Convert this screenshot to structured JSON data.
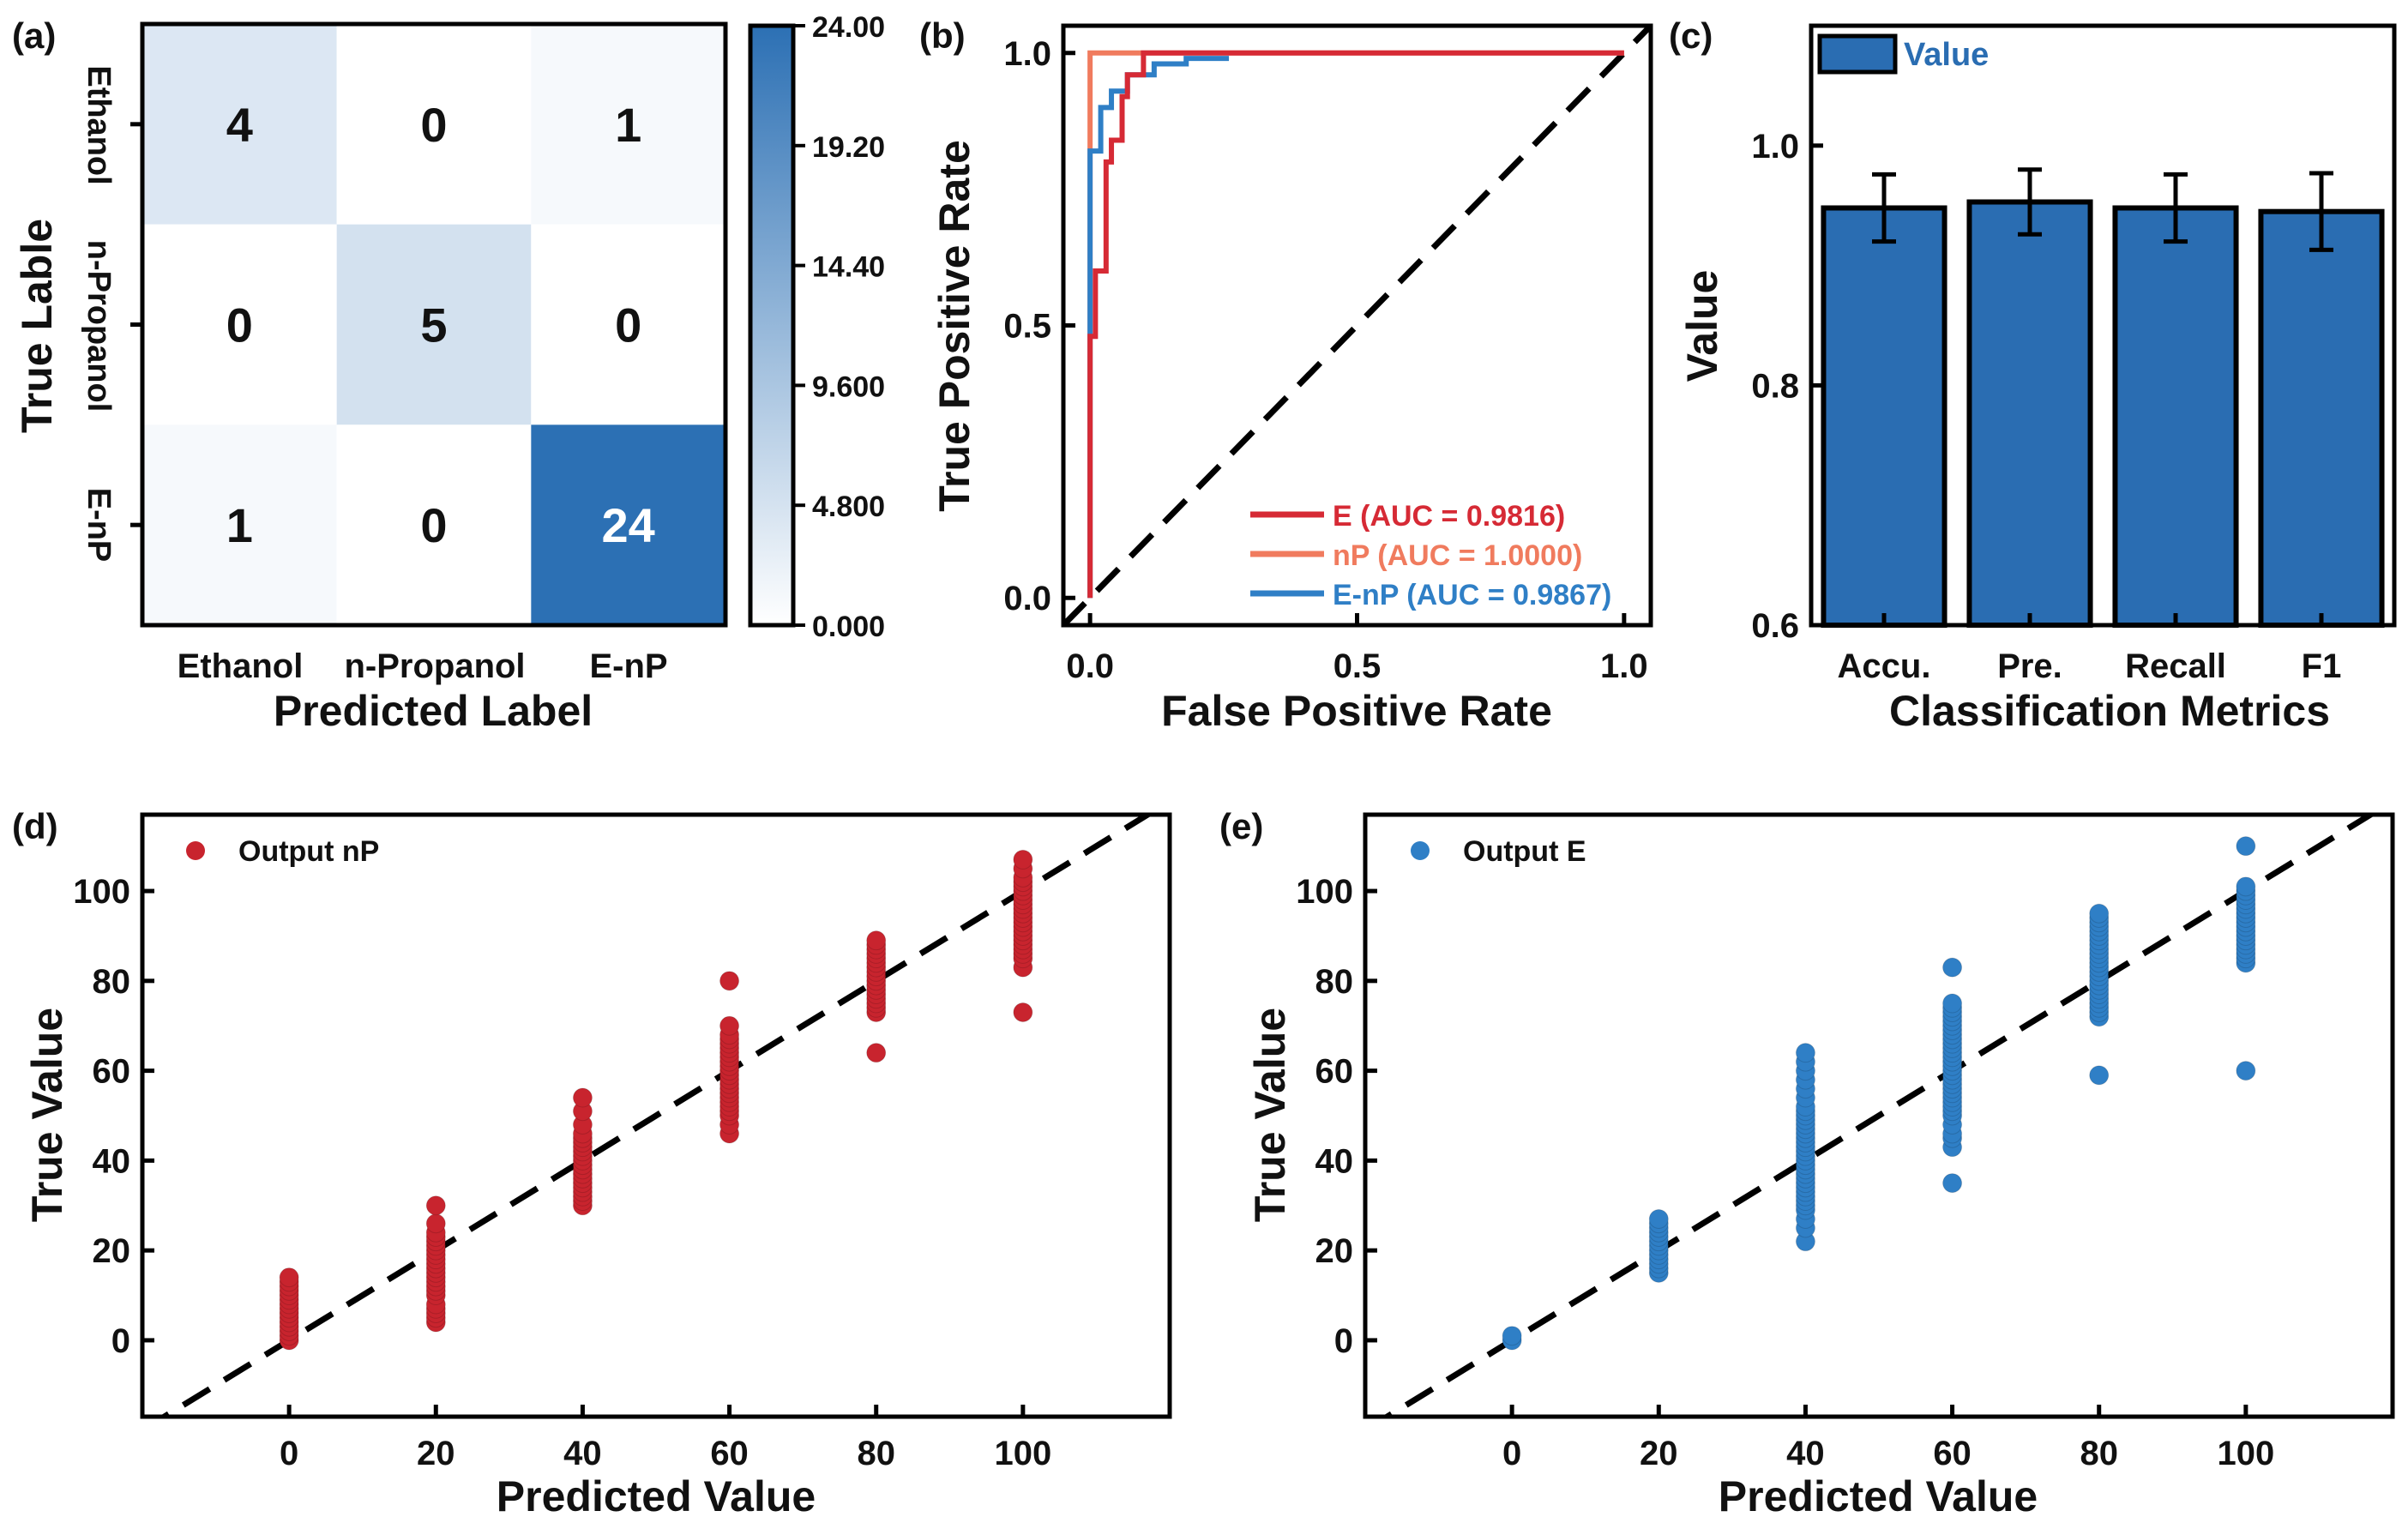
{
  "chart_data": [
    {
      "panel": "(a)",
      "type": "heatmap",
      "title": "",
      "xlabel": "Predicted Label",
      "ylabel": "True Lable",
      "x_categories": [
        "Ethanol",
        "n-Propanol",
        "E-nP"
      ],
      "y_categories": [
        "Ethanol",
        "n-Propanol",
        "E-nP"
      ],
      "matrix": [
        [
          4,
          0,
          1
        ],
        [
          0,
          5,
          0
        ],
        [
          1,
          0,
          24
        ]
      ],
      "colorbar": {
        "min": 0,
        "max": 24,
        "ticks": [
          "24.00",
          "19.20",
          "14.40",
          "9.600",
          "4.800",
          "0.000"
        ],
        "low_color": "#ffffff",
        "high_color": "#2c70b4"
      }
    },
    {
      "panel": "(b)",
      "type": "line",
      "xlabel": "False Positive Rate",
      "ylabel": "True Positive Rate",
      "xlim": [
        -0.05,
        1.05
      ],
      "ylim": [
        -0.05,
        1.05
      ],
      "xticks": [
        0.0,
        0.5,
        1.0
      ],
      "xtick_labels": [
        "0.0",
        "0.5",
        "1.0"
      ],
      "yticks": [
        0.0,
        0.5,
        1.0
      ],
      "ytick_labels": [
        "0.0",
        "0.5",
        "1.0"
      ],
      "legend_position": "bottom-right",
      "diagonal": true,
      "series": [
        {
          "name": "E (AUC = 0.9816)",
          "color": "#d62a35",
          "points": [
            [
              0,
              0
            ],
            [
              0,
              0.48
            ],
            [
              0.01,
              0.48
            ],
            [
              0.01,
              0.6
            ],
            [
              0.03,
              0.6
            ],
            [
              0.03,
              0.8
            ],
            [
              0.04,
              0.8
            ],
            [
              0.04,
              0.84
            ],
            [
              0.06,
              0.84
            ],
            [
              0.06,
              0.92
            ],
            [
              0.07,
              0.92
            ],
            [
              0.07,
              0.96
            ],
            [
              0.1,
              0.96
            ],
            [
              0.1,
              1
            ],
            [
              1,
              1
            ]
          ]
        },
        {
          "name": "nP (AUC = 1.0000)",
          "color": "#f07b5e",
          "points": [
            [
              0,
              0
            ],
            [
              0,
              1
            ],
            [
              1,
              1
            ]
          ]
        },
        {
          "name": "E-nP (AUC = 0.9867)",
          "color": "#2f7fc6",
          "points": [
            [
              0,
              0
            ],
            [
              0,
              0.82
            ],
            [
              0.02,
              0.82
            ],
            [
              0.02,
              0.9
            ],
            [
              0.04,
              0.9
            ],
            [
              0.04,
              0.93
            ],
            [
              0.07,
              0.93
            ],
            [
              0.07,
              0.96
            ],
            [
              0.12,
              0.96
            ],
            [
              0.12,
              0.98
            ],
            [
              0.18,
              0.98
            ],
            [
              0.18,
              0.99
            ],
            [
              0.26,
              0.99
            ]
          ]
        }
      ]
    },
    {
      "panel": "(c)",
      "type": "bar",
      "xlabel": "Classification Metrics",
      "ylabel": "Value",
      "categories": [
        "Accu.",
        "Pre.",
        "Recall",
        "F1"
      ],
      "values": [
        0.948,
        0.953,
        0.948,
        0.945
      ],
      "errors": [
        0.028,
        0.027,
        0.028,
        0.032
      ],
      "ylim": [
        0.6,
        1.1
      ],
      "yticks": [
        0.6,
        0.8,
        1.0
      ],
      "ytick_labels": [
        "0.6",
        "0.8",
        "1.0"
      ],
      "legend": "Value",
      "legend_position": "top-left",
      "color": "#2a6db2"
    },
    {
      "panel": "(d)",
      "type": "scatter",
      "xlabel": "Predicted Value",
      "ylabel": "True Value",
      "legend": "Output nP",
      "legend_position": "top-left",
      "color": "#c8242e",
      "xlim": [
        -20,
        120
      ],
      "ylim": [
        -17,
        117
      ],
      "xticks": [
        0,
        20,
        40,
        60,
        80,
        100
      ],
      "xtick_labels": [
        "0",
        "20",
        "40",
        "60",
        "80",
        "100"
      ],
      "yticks": [
        0,
        20,
        40,
        60,
        80,
        100
      ],
      "ytick_labels": [
        "0",
        "20",
        "40",
        "60",
        "80",
        "100"
      ],
      "diagonal": true,
      "points": [
        [
          0,
          0
        ],
        [
          0,
          1
        ],
        [
          0,
          2
        ],
        [
          0,
          3
        ],
        [
          0,
          4
        ],
        [
          0,
          5
        ],
        [
          0,
          6
        ],
        [
          0,
          7
        ],
        [
          0,
          8
        ],
        [
          0,
          9
        ],
        [
          0,
          10
        ],
        [
          0,
          11
        ],
        [
          0,
          12
        ],
        [
          0,
          13
        ],
        [
          0,
          14
        ],
        [
          20,
          4
        ],
        [
          20,
          5
        ],
        [
          20,
          6
        ],
        [
          20,
          7
        ],
        [
          20,
          8
        ],
        [
          20,
          10
        ],
        [
          20,
          11
        ],
        [
          20,
          12
        ],
        [
          20,
          13
        ],
        [
          20,
          14
        ],
        [
          20,
          15
        ],
        [
          20,
          16
        ],
        [
          20,
          17
        ],
        [
          20,
          18
        ],
        [
          20,
          19
        ],
        [
          20,
          20
        ],
        [
          20,
          21
        ],
        [
          20,
          22
        ],
        [
          20,
          23
        ],
        [
          20,
          24
        ],
        [
          20,
          26
        ],
        [
          20,
          30
        ],
        [
          40,
          30
        ],
        [
          40,
          31
        ],
        [
          40,
          32
        ],
        [
          40,
          33
        ],
        [
          40,
          34
        ],
        [
          40,
          35
        ],
        [
          40,
          36
        ],
        [
          40,
          37
        ],
        [
          40,
          38
        ],
        [
          40,
          39
        ],
        [
          40,
          40
        ],
        [
          40,
          41
        ],
        [
          40,
          42
        ],
        [
          40,
          43
        ],
        [
          40,
          44
        ],
        [
          40,
          45
        ],
        [
          40,
          46
        ],
        [
          40,
          48
        ],
        [
          40,
          51
        ],
        [
          40,
          54
        ],
        [
          60,
          46
        ],
        [
          60,
          48
        ],
        [
          60,
          50
        ],
        [
          60,
          51
        ],
        [
          60,
          52
        ],
        [
          60,
          53
        ],
        [
          60,
          54
        ],
        [
          60,
          55
        ],
        [
          60,
          56
        ],
        [
          60,
          57
        ],
        [
          60,
          58
        ],
        [
          60,
          59
        ],
        [
          60,
          60
        ],
        [
          60,
          61
        ],
        [
          60,
          62
        ],
        [
          60,
          63
        ],
        [
          60,
          64
        ],
        [
          60,
          65
        ],
        [
          60,
          66
        ],
        [
          60,
          67
        ],
        [
          60,
          68
        ],
        [
          60,
          70
        ],
        [
          60,
          80
        ],
        [
          80,
          64
        ],
        [
          80,
          73
        ],
        [
          80,
          74
        ],
        [
          80,
          75
        ],
        [
          80,
          76
        ],
        [
          80,
          77
        ],
        [
          80,
          78
        ],
        [
          80,
          79
        ],
        [
          80,
          80
        ],
        [
          80,
          81
        ],
        [
          80,
          82
        ],
        [
          80,
          83
        ],
        [
          80,
          84
        ],
        [
          80,
          85
        ],
        [
          80,
          86
        ],
        [
          80,
          87
        ],
        [
          80,
          88
        ],
        [
          80,
          89
        ],
        [
          100,
          73
        ],
        [
          100,
          83
        ],
        [
          100,
          85
        ],
        [
          100,
          86
        ],
        [
          100,
          87
        ],
        [
          100,
          88
        ],
        [
          100,
          89
        ],
        [
          100,
          90
        ],
        [
          100,
          91
        ],
        [
          100,
          92
        ],
        [
          100,
          93
        ],
        [
          100,
          94
        ],
        [
          100,
          95
        ],
        [
          100,
          96
        ],
        [
          100,
          97
        ],
        [
          100,
          98
        ],
        [
          100,
          99
        ],
        [
          100,
          100
        ],
        [
          100,
          101
        ],
        [
          100,
          102
        ],
        [
          100,
          103
        ],
        [
          100,
          105
        ],
        [
          100,
          107
        ]
      ]
    },
    {
      "panel": "(e)",
      "type": "scatter",
      "xlabel": "Predicted Value",
      "ylabel": "True Value",
      "legend": "Output E",
      "legend_position": "top-left",
      "color": "#2f7fc6",
      "xlim": [
        -20,
        120
      ],
      "ylim": [
        -17,
        117
      ],
      "xticks": [
        0,
        20,
        40,
        60,
        80,
        100
      ],
      "xtick_labels": [
        "0",
        "20",
        "40",
        "60",
        "80",
        "100"
      ],
      "yticks": [
        0,
        20,
        40,
        60,
        80,
        100
      ],
      "ytick_labels": [
        "0",
        "20",
        "40",
        "60",
        "80",
        "100"
      ],
      "diagonal": true,
      "points": [
        [
          0,
          0
        ],
        [
          0,
          1
        ],
        [
          20,
          15
        ],
        [
          20,
          16
        ],
        [
          20,
          17
        ],
        [
          20,
          18
        ],
        [
          20,
          19
        ],
        [
          20,
          20
        ],
        [
          20,
          21
        ],
        [
          20,
          22
        ],
        [
          20,
          23
        ],
        [
          20,
          24
        ],
        [
          20,
          25
        ],
        [
          20,
          26
        ],
        [
          20,
          27
        ],
        [
          40,
          22
        ],
        [
          40,
          25
        ],
        [
          40,
          27
        ],
        [
          40,
          29
        ],
        [
          40,
          30
        ],
        [
          40,
          31
        ],
        [
          40,
          32
        ],
        [
          40,
          33
        ],
        [
          40,
          34
        ],
        [
          40,
          35
        ],
        [
          40,
          36
        ],
        [
          40,
          37
        ],
        [
          40,
          38
        ],
        [
          40,
          39
        ],
        [
          40,
          40
        ],
        [
          40,
          41
        ],
        [
          40,
          42
        ],
        [
          40,
          43
        ],
        [
          40,
          44
        ],
        [
          40,
          45
        ],
        [
          40,
          46
        ],
        [
          40,
          47
        ],
        [
          40,
          48
        ],
        [
          40,
          49
        ],
        [
          40,
          50
        ],
        [
          40,
          51
        ],
        [
          40,
          52
        ],
        [
          40,
          54
        ],
        [
          40,
          56
        ],
        [
          40,
          58
        ],
        [
          40,
          60
        ],
        [
          40,
          62
        ],
        [
          40,
          64
        ],
        [
          60,
          35
        ],
        [
          60,
          43
        ],
        [
          60,
          45
        ],
        [
          60,
          46
        ],
        [
          60,
          48
        ],
        [
          60,
          50
        ],
        [
          60,
          51
        ],
        [
          60,
          52
        ],
        [
          60,
          53
        ],
        [
          60,
          54
        ],
        [
          60,
          55
        ],
        [
          60,
          56
        ],
        [
          60,
          57
        ],
        [
          60,
          58
        ],
        [
          60,
          59
        ],
        [
          60,
          60
        ],
        [
          60,
          61
        ],
        [
          60,
          62
        ],
        [
          60,
          63
        ],
        [
          60,
          64
        ],
        [
          60,
          65
        ],
        [
          60,
          66
        ],
        [
          60,
          67
        ],
        [
          60,
          68
        ],
        [
          60,
          69
        ],
        [
          60,
          70
        ],
        [
          60,
          71
        ],
        [
          60,
          72
        ],
        [
          60,
          73
        ],
        [
          60,
          74
        ],
        [
          60,
          75
        ],
        [
          60,
          83
        ],
        [
          80,
          59
        ],
        [
          80,
          72
        ],
        [
          80,
          73
        ],
        [
          80,
          74
        ],
        [
          80,
          75
        ],
        [
          80,
          76
        ],
        [
          80,
          77
        ],
        [
          80,
          78
        ],
        [
          80,
          79
        ],
        [
          80,
          80
        ],
        [
          80,
          81
        ],
        [
          80,
          82
        ],
        [
          80,
          83
        ],
        [
          80,
          84
        ],
        [
          80,
          85
        ],
        [
          80,
          86
        ],
        [
          80,
          87
        ],
        [
          80,
          88
        ],
        [
          80,
          89
        ],
        [
          80,
          90
        ],
        [
          80,
          91
        ],
        [
          80,
          92
        ],
        [
          80,
          93
        ],
        [
          80,
          94
        ],
        [
          80,
          95
        ],
        [
          100,
          60
        ],
        [
          100,
          84
        ],
        [
          100,
          85
        ],
        [
          100,
          86
        ],
        [
          100,
          87
        ],
        [
          100,
          88
        ],
        [
          100,
          89
        ],
        [
          100,
          90
        ],
        [
          100,
          91
        ],
        [
          100,
          92
        ],
        [
          100,
          93
        ],
        [
          100,
          94
        ],
        [
          100,
          95
        ],
        [
          100,
          96
        ],
        [
          100,
          97
        ],
        [
          100,
          98
        ],
        [
          100,
          99
        ],
        [
          100,
          100
        ],
        [
          100,
          101
        ],
        [
          100,
          110
        ]
      ]
    }
  ]
}
